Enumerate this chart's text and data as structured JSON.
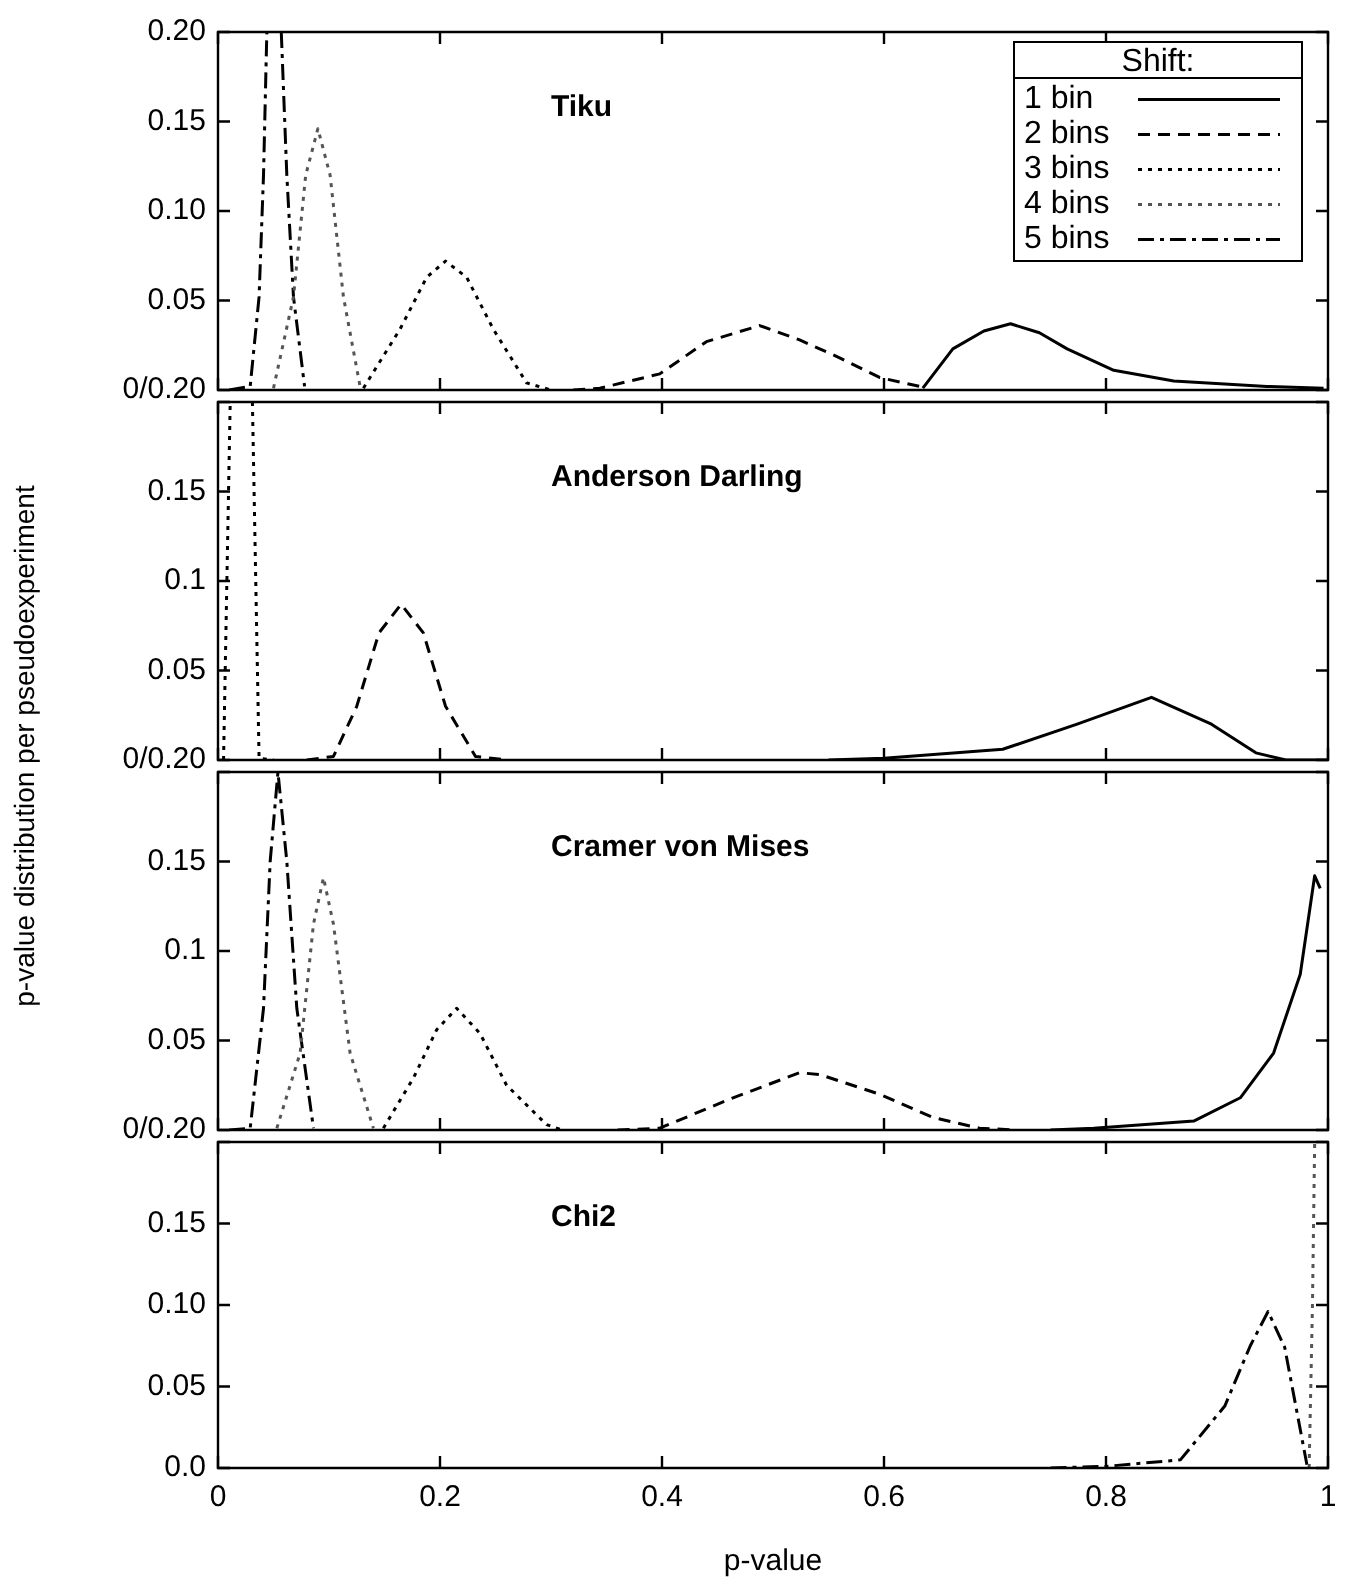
{
  "chart_data": [
    {
      "type": "line",
      "title": "Tiku",
      "ylabel": "p-value distribution per pseudoexperiment",
      "legend": "top right",
      "legend_title": "Shift:",
      "xlim": [
        0,
        1
      ],
      "ylim": [
        0,
        0.2
      ],
      "tick_labels": "y",
      "grid": false,
      "xticks": [
        0,
        0.2,
        0.4,
        0.6,
        0.8,
        1
      ],
      "yticks": [
        {
          "value": 0,
          "label": "0/0.20"
        },
        0.05,
        {
          "value": 0.1,
          "label": "0.10"
        },
        0.15,
        {
          "value": 0.2,
          "label": "0.20"
        }
      ],
      "series": [
        {
          "name": "1 bin",
          "color": "#000000",
          "line_style": "solid",
          "x": [
            0.635,
            0.662,
            0.69,
            0.714,
            0.74,
            0.765,
            0.807,
            0.861,
            0.945,
            0.996
          ],
          "values": [
            0.001,
            0.023,
            0.033,
            0.037,
            0.032,
            0.023,
            0.011,
            0.005,
            0.002,
            0.001
          ]
        },
        {
          "name": "2 bins",
          "color": "#000000",
          "line_style": "dashed",
          "x": [
            0.32,
            0.344,
            0.398,
            0.44,
            0.488,
            0.524,
            0.56,
            0.596,
            0.632
          ],
          "values": [
            0,
            0.001,
            0.009,
            0.027,
            0.036,
            0.028,
            0.018,
            0.007,
            0.002
          ]
        },
        {
          "name": "3 bins",
          "color": "#000000",
          "line_style": "dotted",
          "x": [
            0.131,
            0.164,
            0.188,
            0.205,
            0.224,
            0.248,
            0.278,
            0.3
          ],
          "values": [
            0.001,
            0.034,
            0.063,
            0.072,
            0.063,
            0.034,
            0.004,
            0
          ]
        },
        {
          "name": "4 bins",
          "color": "#555555",
          "line_style": "dotted",
          "x": [
            0.05,
            0.068,
            0.079,
            0.09,
            0.101,
            0.113,
            0.128
          ],
          "values": [
            0.001,
            0.052,
            0.12,
            0.146,
            0.12,
            0.052,
            0.002
          ]
        },
        {
          "name": "5 bins",
          "color": "#000000",
          "line_style": "dashdot",
          "x": [
            0.01,
            0.029,
            0.037,
            0.041,
            0.044,
            0.051,
            0.057,
            0.062,
            0.068,
            0.078
          ],
          "values": [
            0,
            0.002,
            0.052,
            0.12,
            0.2,
            null,
            0.2,
            0.12,
            0.052,
            0.002
          ]
        }
      ]
    },
    {
      "type": "line",
      "title": "Anderson Darling",
      "xlim": [
        0,
        1
      ],
      "ylim": [
        0,
        0.2
      ],
      "tick_labels": "y",
      "grid": false,
      "xticks": [
        0,
        0.2,
        0.4,
        0.6,
        0.8,
        1
      ],
      "yticks": [
        {
          "value": 0,
          "label": "0/0.20"
        },
        0.05,
        0.1,
        0.15,
        {
          "value": 0.2,
          "label": null
        }
      ],
      "series": [
        {
          "color": "#000000",
          "line_style": "solid",
          "x": [
            0.55,
            0.6,
            0.707,
            0.774,
            0.841,
            0.895,
            0.935,
            0.962,
            1.0
          ],
          "values": [
            0,
            0.001,
            0.006,
            0.02,
            0.035,
            0.02,
            0.004,
            0,
            0
          ]
        },
        {
          "color": "#000000",
          "line_style": "dashed",
          "x": [
            0.08,
            0.104,
            0.125,
            0.145,
            0.165,
            0.185,
            0.205,
            0.232,
            0.26
          ],
          "values": [
            0,
            0.002,
            0.03,
            0.071,
            0.087,
            0.071,
            0.03,
            0.002,
            0
          ]
        },
        {
          "color": "#000000",
          "line_style": "dotted",
          "x": [
            0.005,
            0.011,
            0.02,
            0.031,
            0.037,
            0.05
          ],
          "values": [
            0,
            0.2,
            null,
            0.2,
            0.001,
            0
          ]
        }
      ]
    },
    {
      "type": "line",
      "title": "Cramer von Mises",
      "xlim": [
        0,
        1
      ],
      "ylim": [
        0,
        0.2
      ],
      "tick_labels": "y",
      "grid": false,
      "xticks": [
        0,
        0.2,
        0.4,
        0.6,
        0.8,
        1
      ],
      "yticks": [
        {
          "value": 0,
          "label": "0/0.20"
        },
        0.05,
        0.1,
        0.15,
        {
          "value": 0.2,
          "label": null
        }
      ],
      "series": [
        {
          "color": "#000000",
          "line_style": "solid",
          "x": [
            0.75,
            0.789,
            0.879,
            0.921,
            0.951,
            0.975,
            0.988,
            0.993
          ],
          "values": [
            0,
            0.001,
            0.005,
            0.018,
            0.043,
            0.087,
            0.142,
            0.135
          ]
        },
        {
          "color": "#000000",
          "line_style": "dashed",
          "x": [
            0.36,
            0.398,
            0.464,
            0.524,
            0.542,
            0.596,
            0.644,
            0.686,
            0.72
          ],
          "values": [
            0,
            0.001,
            0.018,
            0.032,
            0.031,
            0.02,
            0.007,
            0.001,
            0
          ]
        },
        {
          "color": "#000000",
          "line_style": "dotted",
          "x": [
            0.149,
            0.176,
            0.197,
            0.215,
            0.236,
            0.26,
            0.296,
            0.31
          ],
          "values": [
            0.001,
            0.029,
            0.056,
            0.068,
            0.054,
            0.025,
            0.003,
            0
          ]
        },
        {
          "color": "#555555",
          "line_style": "dotted",
          "x": [
            0.053,
            0.074,
            0.086,
            0.095,
            0.104,
            0.119,
            0.14
          ],
          "values": [
            0.001,
            0.043,
            0.115,
            0.141,
            0.115,
            0.043,
            0.001
          ]
        },
        {
          "color": "#000000",
          "line_style": "dashdot",
          "x": [
            0.01,
            0.029,
            0.041,
            0.047,
            0.054,
            0.062,
            0.071,
            0.086
          ],
          "values": [
            0,
            0.001,
            0.068,
            0.15,
            0.2,
            0.15,
            0.068,
            0.001
          ]
        }
      ]
    },
    {
      "type": "line",
      "title": "Chi2",
      "xlabel": "p-value",
      "xlim": [
        0,
        1
      ],
      "ylim": [
        0,
        0.2
      ],
      "grid": false,
      "xticks": [
        0,
        0.2,
        0.4,
        0.6,
        0.8,
        1
      ],
      "yticks": [
        {
          "value": 0,
          "label": "0.0"
        },
        0.05,
        {
          "value": 0.1,
          "label": "0.10"
        },
        0.15,
        {
          "value": 0.2,
          "label": null
        }
      ],
      "series": [
        {
          "color": "#555555",
          "line_style": "dotted",
          "x": [
            0.983,
            0.986,
            0.988
          ],
          "values": [
            0,
            0.1,
            0.2
          ]
        },
        {
          "color": "#000000",
          "line_style": "dashdot",
          "x": [
            0.75,
            0.8,
            0.867,
            0.907,
            0.93,
            0.946,
            0.961,
            0.971,
            0.981
          ],
          "values": [
            0,
            0.001,
            0.005,
            0.038,
            0.075,
            0.096,
            0.074,
            0.038,
            0.002
          ]
        }
      ]
    }
  ]
}
